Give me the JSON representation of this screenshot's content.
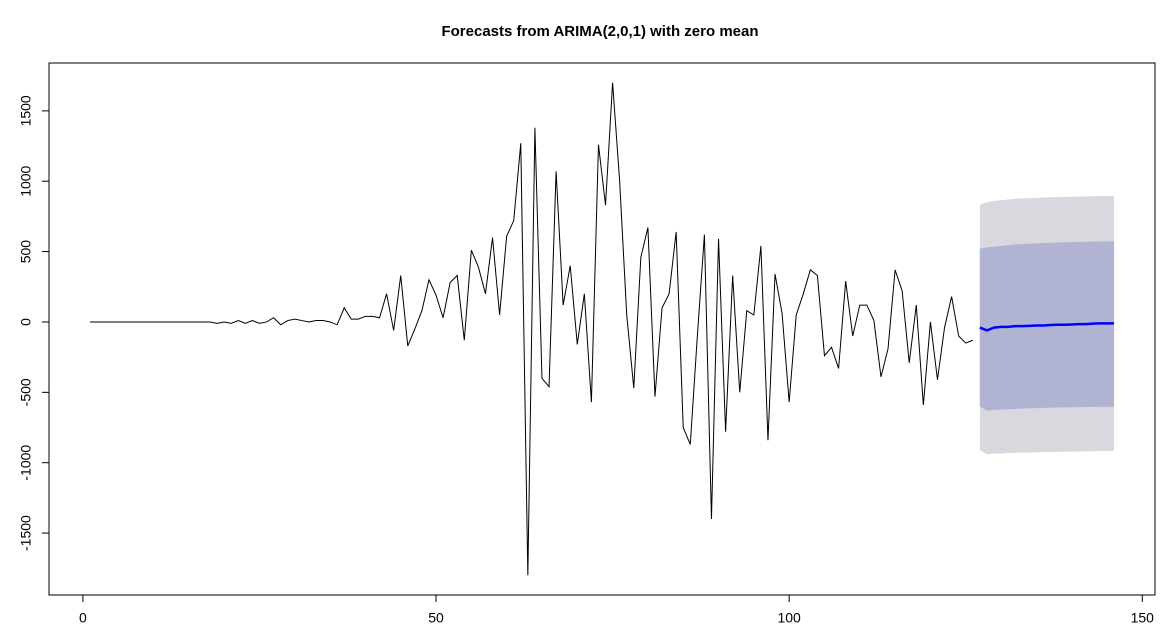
{
  "chart_data": {
    "type": "forecast",
    "title": "Forecasts from ARIMA(2,0,1) with zero mean",
    "xlim": [
      -4.8,
      151.8
    ],
    "xticks": [
      0,
      50,
      100,
      150
    ],
    "ylim": [
      -1940,
      1840
    ],
    "yticks": [
      -1500,
      -1000,
      -500,
      0,
      500,
      1000,
      1500
    ],
    "series": [
      {
        "color": "#000000",
        "x": [
          1,
          2,
          3,
          4,
          5,
          6,
          7,
          8,
          9,
          10,
          11,
          12,
          13,
          14,
          15,
          16,
          17,
          18,
          19,
          20,
          21,
          22,
          23,
          24,
          25,
          26,
          27,
          28,
          29,
          30,
          31,
          32,
          33,
          34,
          35,
          36,
          37,
          38,
          39,
          40,
          41,
          42,
          43,
          44,
          45,
          46,
          47,
          48,
          49,
          50,
          51,
          52,
          53,
          54,
          55,
          56,
          57,
          58,
          59,
          60,
          61,
          62,
          63,
          64,
          65,
          66,
          67,
          68,
          69,
          70,
          71,
          72,
          73,
          74,
          75,
          76,
          77,
          78,
          79,
          80,
          81,
          82,
          83,
          84,
          85,
          86,
          87,
          88,
          89,
          90,
          91,
          92,
          93,
          94,
          95,
          96,
          97,
          98,
          99,
          100,
          101,
          102,
          103,
          104,
          105,
          106,
          107,
          108,
          109,
          110,
          111,
          112,
          113,
          114,
          115,
          116,
          117,
          118,
          119,
          120,
          121,
          122,
          123,
          124,
          125,
          126
        ],
        "values": [
          0,
          0,
          0,
          0,
          0,
          0,
          0,
          0,
          0,
          0,
          0,
          0,
          0,
          0,
          0,
          0,
          0,
          0,
          -10,
          0,
          -10,
          10,
          -10,
          10,
          -10,
          0,
          30,
          -20,
          10,
          20,
          10,
          0,
          10,
          10,
          0,
          -20,
          100,
          20,
          20,
          40,
          40,
          30,
          200,
          -60,
          330,
          -170,
          -50,
          80,
          300,
          190,
          30,
          280,
          330,
          -130,
          510,
          390,
          200,
          600,
          50,
          610,
          720,
          1270,
          -1800,
          1380,
          -400,
          -460,
          1070,
          120,
          400,
          -160,
          200,
          -570,
          1260,
          830,
          1700,
          1000,
          50,
          -470,
          460,
          670,
          -530,
          100,
          200,
          640,
          -750,
          -870,
          -100,
          620,
          -1400,
          590,
          -780,
          330,
          -500,
          80,
          50,
          540,
          -840,
          340,
          60,
          -570,
          50,
          200,
          370,
          330,
          -240,
          -180,
          -330,
          290,
          -100,
          120,
          120,
          10,
          -390,
          -190,
          370,
          220,
          -290,
          120,
          -590,
          0,
          -410,
          -40,
          180,
          -100,
          -150,
          -130
        ]
      },
      {
        "color": "#0000ff",
        "x": [
          127,
          128,
          129,
          130,
          131,
          132,
          133,
          134,
          135,
          136,
          137,
          138,
          139,
          140,
          141,
          142,
          143,
          144,
          145,
          146
        ],
        "values": [
          -40,
          -60,
          -40,
          -35,
          -35,
          -30,
          -30,
          -28,
          -25,
          -25,
          -22,
          -20,
          -20,
          -18,
          -15,
          -15,
          -12,
          -10,
          -10,
          -10
        ]
      }
    ],
    "intervals": [
      {
        "color": "#d8d8de",
        "upper": [
          830,
          850,
          860,
          865,
          870,
          875,
          878,
          880,
          882,
          884,
          886,
          888,
          889,
          890,
          891,
          892,
          893,
          894,
          895,
          896
        ],
        "lower": [
          -910,
          -940,
          -935,
          -935,
          -930,
          -930,
          -928,
          -928,
          -926,
          -925,
          -924,
          -923,
          -922,
          -921,
          -920,
          -920,
          -919,
          -918,
          -918,
          -918
        ]
      },
      {
        "color": "#b0b4d2",
        "upper": [
          520,
          530,
          535,
          540,
          545,
          550,
          553,
          556,
          558,
          560,
          562,
          564,
          566,
          567,
          568,
          570,
          571,
          572,
          573,
          574
        ],
        "lower": [
          -600,
          -630,
          -625,
          -622,
          -620,
          -618,
          -616,
          -614,
          -612,
          -610,
          -609,
          -608,
          -607,
          -606,
          -605,
          -604,
          -603,
          -602,
          -602,
          -602
        ]
      }
    ]
  }
}
